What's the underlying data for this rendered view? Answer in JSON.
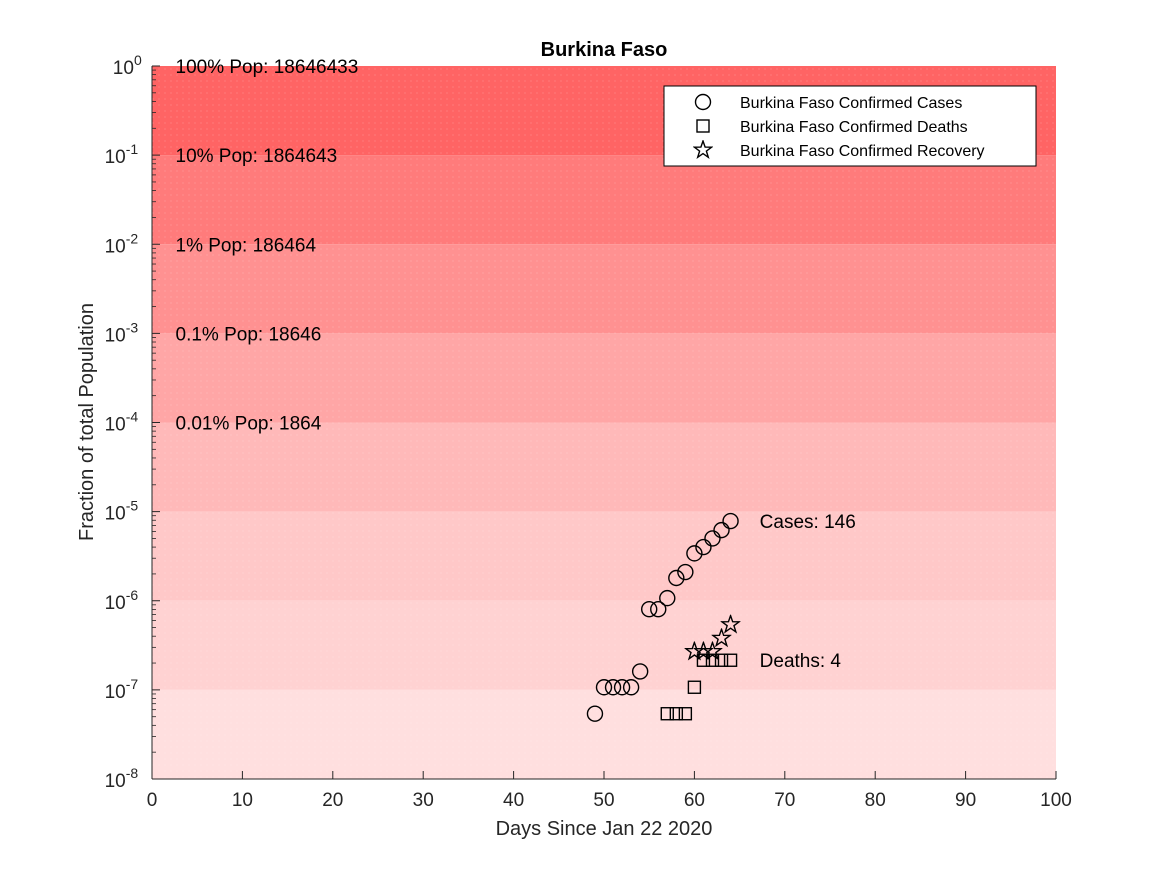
{
  "chart_data": {
    "type": "scatter",
    "title": "Burkina Faso",
    "xlabel": "Days Since Jan 22 2020",
    "ylabel": "Fraction of total Population",
    "xlim": [
      0,
      100
    ],
    "ylim_log10": [
      -8,
      0
    ],
    "yscale": "log",
    "x_ticks": [
      "0",
      "10",
      "20",
      "30",
      "40",
      "50",
      "60",
      "70",
      "80",
      "90",
      "100"
    ],
    "y_ticks": [
      {
        "base": "10",
        "exp": "0"
      },
      {
        "base": "10",
        "exp": "-1"
      },
      {
        "base": "10",
        "exp": "-2"
      },
      {
        "base": "10",
        "exp": "-3"
      },
      {
        "base": "10",
        "exp": "-4"
      },
      {
        "base": "10",
        "exp": "-5"
      },
      {
        "base": "10",
        "exp": "-6"
      },
      {
        "base": "10",
        "exp": "-7"
      },
      {
        "base": "10",
        "exp": "-8"
      }
    ],
    "population": 18646433,
    "bands": [
      {
        "from_exp": -1,
        "to_exp": 0,
        "color": "#ff6464",
        "label": "100% Pop: 18646433",
        "label_exp": 0
      },
      {
        "from_exp": -2,
        "to_exp": -1,
        "color": "#ff7b7b",
        "label": "10% Pop: 1864643",
        "label_exp": -1
      },
      {
        "from_exp": -3,
        "to_exp": -2,
        "color": "#ff9191",
        "label": "1% Pop: 186464",
        "label_exp": -2
      },
      {
        "from_exp": -4,
        "to_exp": -3,
        "color": "#ffa6a6",
        "label": "0.1% Pop: 18646",
        "label_exp": -3
      },
      {
        "from_exp": -5,
        "to_exp": -4,
        "color": "#ffb9b9",
        "label": "0.01% Pop: 1864",
        "label_exp": -4
      },
      {
        "from_exp": -6,
        "to_exp": -5,
        "color": "#ffc8c8",
        "label": "",
        "label_exp": -5
      },
      {
        "from_exp": -7,
        "to_exp": -6,
        "color": "#ffd2d2",
        "label": "",
        "label_exp": -6
      },
      {
        "from_exp": -8,
        "to_exp": -7,
        "color": "#ffdfdf",
        "label": "",
        "label_exp": -7
      }
    ],
    "series": [
      {
        "name": "Burkina Faso Confirmed Cases",
        "marker": "circle",
        "x": [
          49,
          50,
          51,
          52,
          53,
          54,
          55,
          56,
          57,
          58,
          59,
          60,
          61,
          62,
          63,
          64
        ],
        "y": [
          5.4e-08,
          1.07e-07,
          1.07e-07,
          1.07e-07,
          1.07e-07,
          1.61e-07,
          8.04e-07,
          8.04e-07,
          1.07e-06,
          1.8e-06,
          2.1e-06,
          3.4e-06,
          4e-06,
          5e-06,
          6.2e-06,
          7.83e-06
        ]
      },
      {
        "name": "Burkina Faso Confirmed Deaths",
        "marker": "square",
        "x": [
          57,
          58,
          59,
          60,
          61,
          62,
          63,
          64
        ],
        "y": [
          5.4e-08,
          5.4e-08,
          5.4e-08,
          1.07e-07,
          2.15e-07,
          2.15e-07,
          2.15e-07,
          2.15e-07
        ]
      },
      {
        "name": "Burkina Faso Confirmed Recovery",
        "marker": "star",
        "x": [
          60,
          61,
          62,
          63,
          64
        ],
        "y": [
          2.7e-07,
          2.7e-07,
          2.7e-07,
          3.8e-07,
          5.4e-07
        ]
      }
    ],
    "annotations": [
      {
        "text": "Cases: 146",
        "x": 67,
        "y": 7.83e-06
      },
      {
        "text": "Deaths: 4",
        "x": 67,
        "y": 2.15e-07
      }
    ],
    "legend_position": "top-right"
  }
}
